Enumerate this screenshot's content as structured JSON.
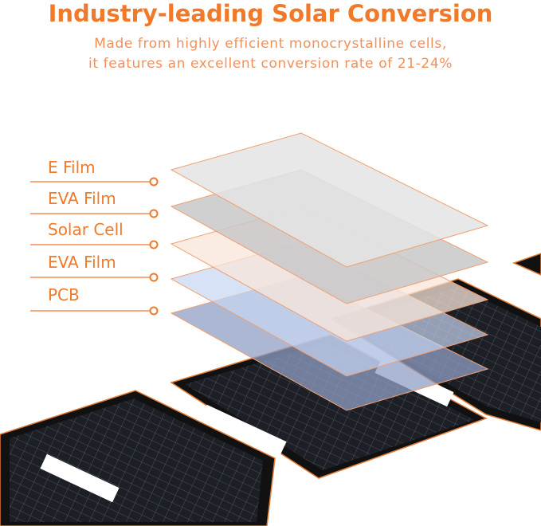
{
  "header": {
    "title": "Industry-leading Solar Conversion",
    "subtitle_lines": [
      "Made from highly efficient monocrystalline cells,",
      "it features an excellent conversion rate of 21-24%"
    ]
  },
  "layers": [
    {
      "label": "E Film"
    },
    {
      "label": "EVA Film"
    },
    {
      "label": "Solar Cell"
    },
    {
      "label": "EVA Film"
    },
    {
      "label": "PCB"
    }
  ]
}
